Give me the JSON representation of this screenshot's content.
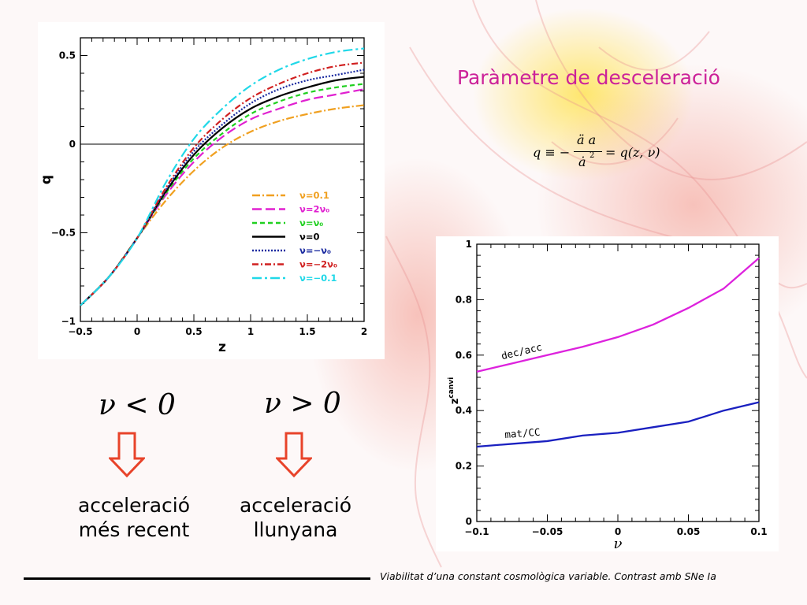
{
  "slide": {
    "title": "Paràmetre de desceleració",
    "formula": {
      "lhs": "q ≡ −",
      "numerator": "ä a",
      "denominator": "ȧ",
      "denominator_exp": "2",
      "rhs": "= q(z, ν)"
    },
    "cases": [
      {
        "condition": "ν < 0",
        "arrow_icon": "down-arrow-icon",
        "line1": "acceleració",
        "line2": "més recent"
      },
      {
        "condition": "ν > 0",
        "arrow_icon": "down-arrow-icon",
        "line1": "acceleració",
        "line2": "llunyana"
      }
    ],
    "footer": "Viabilitat d’una constant cosmològica variable. Contrast amb SNe Ia",
    "arrow_color": "#e8432a",
    "title_color": "#cc2299"
  },
  "chart_data": [
    {
      "type": "line",
      "xlabel": "z",
      "ylabel": "q",
      "xlim": [
        -0.5,
        2
      ],
      "ylim": [
        -1,
        0.6
      ],
      "xticks": [
        -0.5,
        0,
        0.5,
        1,
        1.5,
        2
      ],
      "xtick_labels": [
        "−0.5",
        "0",
        "0.5",
        "1",
        "1.5",
        "2"
      ],
      "yticks": [
        -1,
        -0.5,
        0,
        0.5
      ],
      "ytick_labels": [
        "−1",
        "−0.5",
        "0",
        "0.5"
      ],
      "reference_line_y": 0,
      "legend_position": "lower-right",
      "x": [
        -0.5,
        -0.25,
        0,
        0.25,
        0.5,
        0.75,
        1,
        1.25,
        1.5,
        1.75,
        2
      ],
      "series": [
        {
          "name": "ν=0.1",
          "color": "#f0a020",
          "dash": "10,3,2,3",
          "values": [
            -0.91,
            -0.75,
            -0.53,
            -0.32,
            -0.15,
            -0.02,
            0.07,
            0.13,
            0.17,
            0.2,
            0.22
          ]
        },
        {
          "name": "ν=2ν₀",
          "color": "#e020d0",
          "dash": "12,5",
          "values": [
            -0.91,
            -0.75,
            -0.53,
            -0.29,
            -0.1,
            0.04,
            0.14,
            0.2,
            0.25,
            0.28,
            0.31
          ]
        },
        {
          "name": "ν=ν₀",
          "color": "#20d020",
          "dash": "6,4",
          "values": [
            -0.91,
            -0.75,
            -0.53,
            -0.28,
            -0.08,
            0.06,
            0.17,
            0.24,
            0.29,
            0.32,
            0.34
          ]
        },
        {
          "name": "ν=0",
          "color": "#000000",
          "dash": "",
          "values": [
            -0.91,
            -0.75,
            -0.53,
            -0.27,
            -0.06,
            0.09,
            0.2,
            0.27,
            0.32,
            0.36,
            0.38
          ]
        },
        {
          "name": "ν=−ν₀",
          "color": "#1a2aa0",
          "dash": "2,2",
          "values": [
            -0.91,
            -0.75,
            -0.53,
            -0.26,
            -0.04,
            0.11,
            0.23,
            0.31,
            0.36,
            0.39,
            0.42
          ]
        },
        {
          "name": "ν=−2ν₀",
          "color": "#d02020",
          "dash": "8,3,2,3",
          "values": [
            -0.91,
            -0.75,
            -0.53,
            -0.25,
            -0.02,
            0.14,
            0.26,
            0.34,
            0.4,
            0.44,
            0.46
          ]
        },
        {
          "name": "ν=−0.1",
          "color": "#20d8e8",
          "dash": "12,4,3,4",
          "values": [
            -0.91,
            -0.75,
            -0.53,
            -0.22,
            0.03,
            0.2,
            0.33,
            0.42,
            0.48,
            0.52,
            0.54
          ]
        }
      ]
    },
    {
      "type": "line",
      "xlabel": "ν",
      "ylabel": "z_canvi",
      "ylabel_main": "z",
      "ylabel_sup": "canvi",
      "xlim": [
        -0.1,
        0.1
      ],
      "ylim": [
        0,
        1
      ],
      "xticks": [
        -0.1,
        -0.05,
        0,
        0.05,
        0.1
      ],
      "xtick_labels": [
        "−0.1",
        "−0.05",
        "0",
        "0.05",
        "0.1"
      ],
      "yticks": [
        0,
        0.2,
        0.4,
        0.6,
        0.8,
        1
      ],
      "ytick_labels": [
        "0",
        "0.2",
        "0.4",
        "0.6",
        "0.8",
        "1"
      ],
      "x": [
        -0.1,
        -0.075,
        -0.05,
        -0.025,
        0,
        0.025,
        0.05,
        0.075,
        0.1
      ],
      "series": [
        {
          "name": "dec/acc",
          "color": "#dd22dd",
          "values": [
            0.54,
            0.57,
            0.6,
            0.63,
            0.665,
            0.71,
            0.77,
            0.84,
            0.95
          ]
        },
        {
          "name": "mat/CC",
          "color": "#1a20c0",
          "values": [
            0.27,
            0.28,
            0.29,
            0.31,
            0.32,
            0.34,
            0.36,
            0.4,
            0.43
          ]
        }
      ]
    }
  ]
}
